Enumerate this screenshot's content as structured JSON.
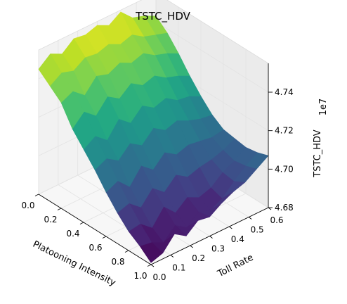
{
  "chart_data": {
    "type": "surface",
    "title": "TSTC_HDV",
    "xlabel": "Platooning Intensity",
    "ylabel": "Toll Rate",
    "zlabel": "TSTC_HDV",
    "z_offset_label": "1e7",
    "x_ticks": [
      "0.0",
      "0.2",
      "0.4",
      "0.6",
      "0.8",
      "1.0"
    ],
    "y_ticks": [
      "0.0",
      "0.1",
      "0.2",
      "0.3",
      "0.4",
      "0.5",
      "0.6"
    ],
    "z_ticks": [
      "4.68",
      "4.70",
      "4.72",
      "4.74"
    ],
    "xlim": [
      0,
      1
    ],
    "ylim": [
      0,
      0.6
    ],
    "zlim": [
      4.68,
      4.755
    ],
    "colormap": "viridis",
    "x": [
      0.0,
      0.1,
      0.2,
      0.3,
      0.4,
      0.5,
      0.6,
      0.7,
      0.8,
      0.9,
      1.0
    ],
    "y": [
      0.0,
      0.06,
      0.12,
      0.18,
      0.24,
      0.3,
      0.36,
      0.42,
      0.48,
      0.54,
      0.6
    ],
    "z": [
      [
        4.745,
        4.75,
        4.747,
        4.752,
        4.751,
        4.753,
        4.75,
        4.754,
        4.748,
        4.746,
        4.743
      ],
      [
        4.74,
        4.744,
        4.742,
        4.746,
        4.745,
        4.747,
        4.744,
        4.746,
        4.742,
        4.74,
        4.738
      ],
      [
        4.735,
        4.738,
        4.733,
        4.74,
        4.738,
        4.741,
        4.738,
        4.74,
        4.736,
        4.734,
        4.731
      ],
      [
        4.725,
        4.731,
        4.726,
        4.733,
        4.729,
        4.734,
        4.73,
        4.732,
        4.728,
        4.726,
        4.723
      ],
      [
        4.718,
        4.722,
        4.717,
        4.725,
        4.72,
        4.726,
        4.722,
        4.724,
        4.72,
        4.719,
        4.716
      ],
      [
        4.711,
        4.714,
        4.71,
        4.716,
        4.712,
        4.718,
        4.714,
        4.716,
        4.713,
        4.711,
        4.71
      ],
      [
        4.703,
        4.706,
        4.7,
        4.708,
        4.703,
        4.709,
        4.705,
        4.707,
        4.706,
        4.705,
        4.706
      ],
      [
        4.696,
        4.698,
        4.693,
        4.7,
        4.695,
        4.701,
        4.697,
        4.699,
        4.7,
        4.702,
        4.705
      ],
      [
        4.69,
        4.691,
        4.686,
        4.694,
        4.688,
        4.693,
        4.69,
        4.692,
        4.697,
        4.7,
        4.704
      ],
      [
        4.686,
        4.685,
        4.682,
        4.688,
        4.684,
        4.689,
        4.687,
        4.69,
        4.696,
        4.701,
        4.705
      ],
      [
        4.681,
        4.683,
        4.69,
        4.686,
        4.691,
        4.69,
        4.694,
        4.697,
        4.699,
        4.703,
        4.707
      ]
    ]
  }
}
